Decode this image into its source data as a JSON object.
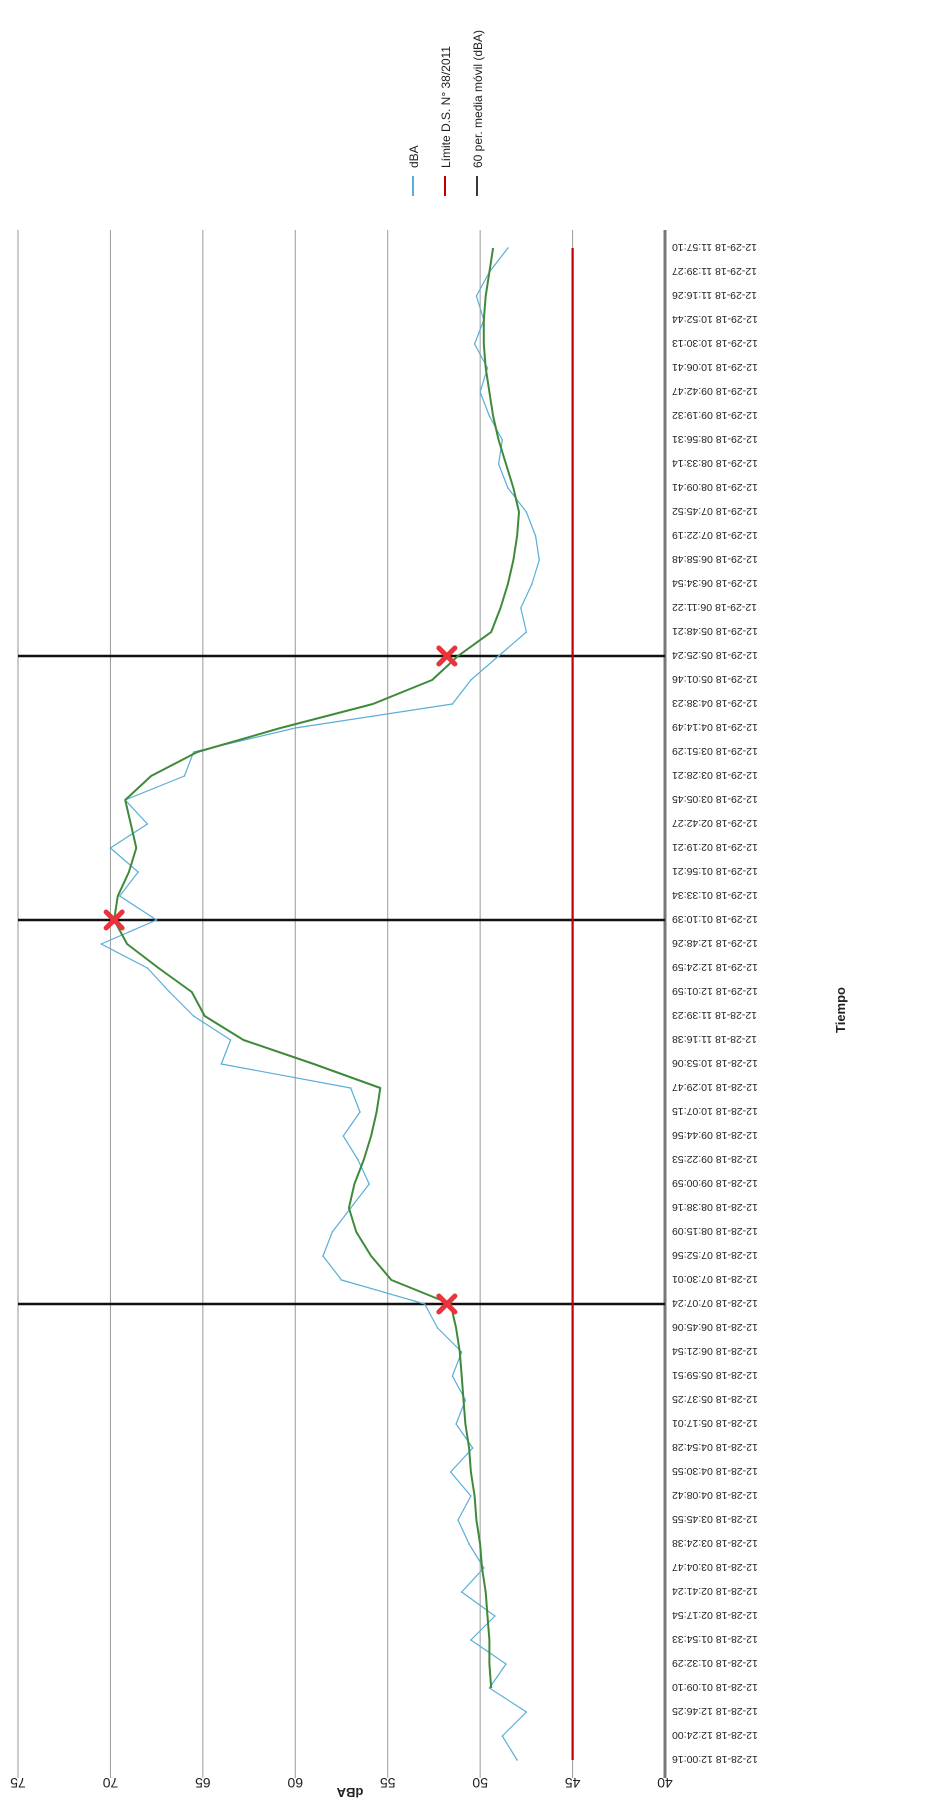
{
  "chart_data": {
    "type": "line",
    "title": "",
    "xlabel": "Tiempo",
    "ylabel": "dBA",
    "ylim": [
      40,
      75
    ],
    "yticks": [
      40,
      45,
      50,
      55,
      60,
      65,
      70,
      75
    ],
    "grid": true,
    "legend_position": "right",
    "orientation": "rotated",
    "categories": [
      "12-28-18 12:00:16",
      "12-28-18 12:24:00",
      "12-28-18 12:46:25",
      "12-28-18 01:09:10",
      "12-28-18 01:32:29",
      "12-28-18 01:54:33",
      "12-28-18 02:17:54",
      "12-28-18 02:41:24",
      "12-28-18 03:04:47",
      "12-28-18 03:24:38",
      "12-28-18 03:45:55",
      "12-28-18 04:08:42",
      "12-28-18 04:30:55",
      "12-28-18 04:54:28",
      "12-28-18 05:17:01",
      "12-28-18 05:37:25",
      "12-28-18 05:59:51",
      "12-28-18 06:21:54",
      "12-28-18 06:45:06",
      "12-28-18 07:07:24",
      "12-28-18 07:30:01",
      "12-28-18 07:52:56",
      "12-28-18 08:15:09",
      "12-28-18 08:38:16",
      "12-28-18 09:00:59",
      "12-28-18 09:22:53",
      "12-28-18 09:44:56",
      "12-28-18 10:07:15",
      "12-28-18 10:29:47",
      "12-28-18 10:53:06",
      "12-28-18 11:16:38",
      "12-28-18 11:39:23",
      "12-29-18 12:01:59",
      "12-29-18 12:24:59",
      "12-29-18 12:48:26",
      "12-29-18 01:10:39",
      "12-29-18 01:33:34",
      "12-29-18 01:56:21",
      "12-29-18 02:19:21",
      "12-29-18 02:42:27",
      "12-29-18 03:05:45",
      "12-29-18 03:28:21",
      "12-29-18 03:51:29",
      "12-29-18 04:14:49",
      "12-29-18 04:38:23",
      "12-29-18 05:01:46",
      "12-29-18 05:25:24",
      "12-29-18 05:48:21",
      "12-29-18 06:11:22",
      "12-29-18 06:34:54",
      "12-29-18 06:58:48",
      "12-29-18 07:22:19",
      "12-29-18 07:45:52",
      "12-29-18 08:09:41",
      "12-29-18 08:33:14",
      "12-29-18 08:56:31",
      "12-29-18 09:19:32",
      "12-29-18 09:42:47",
      "12-29-18 10:06:41",
      "12-29-18 10:30:13",
      "12-29-18 10:52:44",
      "12-29-18 11:16:26",
      "12-29-18 11:39:27",
      "12-29-18 11:57:10"
    ],
    "series": [
      {
        "name": "dBA",
        "color": "#5aaed8",
        "values": [
          48.0,
          48.8,
          47.5,
          49.5,
          48.6,
          50.5,
          49.2,
          51.0,
          49.8,
          50.6,
          51.2,
          50.5,
          51.6,
          50.4,
          51.3,
          50.8,
          51.5,
          51.0,
          52.3,
          53.0,
          57.5,
          58.5,
          58.0,
          57.0,
          56.0,
          56.6,
          57.4,
          56.5,
          57.0,
          64.0,
          63.5,
          65.5,
          66.8,
          68.0,
          70.5,
          67.5,
          69.5,
          68.5,
          70.0,
          68.0,
          69.2,
          66.0,
          65.5,
          60.0,
          51.5,
          50.5,
          49.0,
          47.5,
          47.8,
          47.2,
          46.8,
          47.0,
          47.5,
          48.5,
          49.0,
          48.8,
          49.5,
          50.0,
          49.6,
          50.3,
          49.8,
          50.2,
          49.5,
          48.5
        ]
      },
      {
        "name": "Límite D.S. N° 38/2011",
        "color": "#c00000",
        "values": [
          45,
          45,
          45,
          45,
          45,
          45,
          45,
          45,
          45,
          45,
          45,
          45,
          45,
          45,
          45,
          45,
          45,
          45,
          45,
          45,
          45,
          45,
          45,
          45,
          45,
          45,
          45,
          45,
          45,
          45,
          45,
          45,
          45,
          45,
          45,
          45,
          45,
          45,
          45,
          45,
          45,
          45,
          45,
          45,
          45,
          45,
          45,
          45,
          45,
          45,
          45,
          45,
          45,
          45,
          45,
          45,
          45,
          45,
          45,
          45,
          45,
          45,
          45,
          45
        ]
      },
      {
        "name": "60 per. media móvil (dBA)",
        "color": "#3a3a3a",
        "values": [
          null,
          null,
          null,
          49.4,
          49.5,
          49.5,
          49.6,
          49.7,
          49.9,
          50.0,
          50.2,
          50.3,
          50.5,
          50.6,
          50.8,
          50.9,
          51.0,
          51.1,
          51.3,
          51.6,
          54.8,
          55.9,
          56.7,
          57.1,
          56.8,
          56.3,
          55.9,
          55.6,
          55.4,
          59.0,
          62.8,
          64.9,
          65.6,
          67.4,
          69.1,
          69.8,
          69.6,
          69.0,
          68.6,
          68.9,
          69.2,
          67.8,
          65.3,
          60.8,
          55.8,
          52.6,
          51.2,
          49.4,
          48.9,
          48.5,
          48.2,
          48.0,
          47.9,
          48.2,
          48.6,
          49.0,
          49.3,
          49.5,
          49.7,
          49.8,
          49.8,
          49.7,
          49.5,
          49.3
        ]
      }
    ],
    "vertical_lines_at": [
      "12-28-18 07:07:24",
      "12-29-18 01:10:39",
      "12-29-18 05:25:24"
    ],
    "markers": [
      {
        "category": "12-28-18 07:07:24",
        "value": 51.8,
        "color": "#e8343a",
        "symbol": "x"
      },
      {
        "category": "12-29-18 01:10:39",
        "value": 69.8,
        "color": "#e8343a",
        "symbol": "x"
      },
      {
        "category": "12-29-18 05:25:24",
        "value": 51.8,
        "color": "#e8343a",
        "symbol": "x"
      }
    ]
  }
}
